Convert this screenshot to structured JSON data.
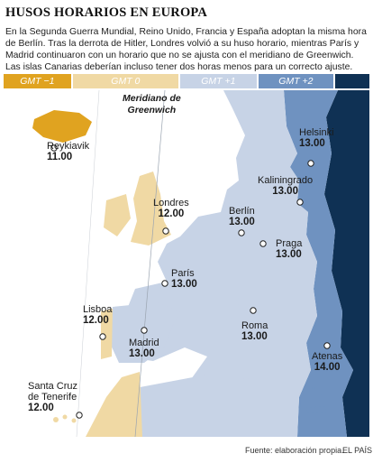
{
  "title": "HUSOS HORARIOS EN EUROPA",
  "intro": "En la Segunda Guerra Mundial, Reino Unido, Francia y España adoptan la misma hora de Berlín. Tras la derrota de Hitler, Londres volvió a su huso horario, mientras París y Madrid continuaron con un horario que no se ajusta con el meridiano de Greenwich. Las islas Canarias deberían incluso tener dos horas menos para un correcto ajuste.",
  "legend": [
    {
      "label": "GMT −1",
      "color": "#e0a320"
    },
    {
      "label": "GMT 0",
      "color": "#f0d9a4"
    },
    {
      "label": "GMT +1",
      "color": "#c7d3e6"
    },
    {
      "label": "GMT +2",
      "color": "#6f92c0"
    },
    {
      "label": "",
      "color": "#0f3154"
    }
  ],
  "meridian": {
    "line1": "Meridiano de",
    "line2": "Greenwich"
  },
  "cities": {
    "reykjavik": {
      "name": "Reykiavik",
      "time": "11.00"
    },
    "londres": {
      "name": "Londres",
      "time": "12.00"
    },
    "paris": {
      "name": "París",
      "time": "13.00"
    },
    "madrid": {
      "name": "Madrid",
      "time": "13.00"
    },
    "lisboa": {
      "name": "Lisboa",
      "time": "12.00"
    },
    "berlin": {
      "name": "Berlín",
      "time": "13.00"
    },
    "praga": {
      "name": "Praga",
      "time": "13.00"
    },
    "roma": {
      "name": "Roma",
      "time": "13.00"
    },
    "helsinki": {
      "name": "Helsinki",
      "time": "13.00"
    },
    "kaliningrado": {
      "name": "Kaliningrado",
      "time": "13.00"
    },
    "atenas": {
      "name": "Atenas",
      "time": "14.00"
    },
    "canarias": {
      "name1": "Santa Cruz",
      "name2": "de Tenerife",
      "time": "12.00"
    }
  },
  "footer": {
    "source": "Fuente: elaboración propia.",
    "brand": "EL PAÍS"
  }
}
